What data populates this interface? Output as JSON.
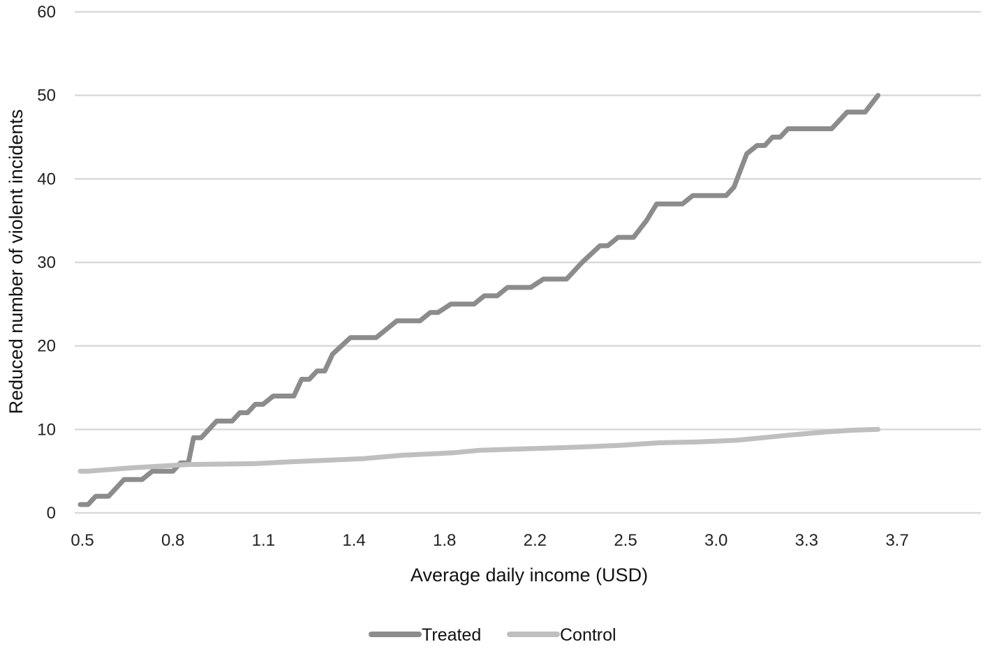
{
  "chart_data": {
    "type": "line",
    "title": "",
    "xlabel": "Average daily income (USD)",
    "ylabel": "Reduced number of violent incidents",
    "ylim": [
      0,
      60
    ],
    "yticks": [
      "0",
      "10",
      "20",
      "30",
      "40",
      "50",
      "60"
    ],
    "xlim": [
      0.5,
      4.0
    ],
    "xticks": [
      "0.5",
      "0.8",
      "1.1",
      "1.4",
      "1.8",
      "2.2",
      "2.5",
      "3.0",
      "3.3",
      "3.7"
    ],
    "grid": true,
    "legend_position": "bottom",
    "series": [
      {
        "name": "Treated",
        "color": "#8c8c8c",
        "points": [
          [
            0.5,
            1
          ],
          [
            0.53,
            1
          ],
          [
            0.56,
            2
          ],
          [
            0.61,
            2
          ],
          [
            0.67,
            4
          ],
          [
            0.74,
            4
          ],
          [
            0.78,
            5
          ],
          [
            0.86,
            5
          ],
          [
            0.89,
            6
          ],
          [
            0.92,
            6
          ],
          [
            0.94,
            9
          ],
          [
            0.97,
            9
          ],
          [
            1.03,
            11
          ],
          [
            1.09,
            11
          ],
          [
            1.12,
            12
          ],
          [
            1.15,
            12
          ],
          [
            1.18,
            13
          ],
          [
            1.21,
            13
          ],
          [
            1.25,
            14
          ],
          [
            1.33,
            14
          ],
          [
            1.36,
            16
          ],
          [
            1.39,
            16
          ],
          [
            1.42,
            17
          ],
          [
            1.45,
            17
          ],
          [
            1.48,
            19
          ],
          [
            1.55,
            21
          ],
          [
            1.65,
            21
          ],
          [
            1.73,
            23
          ],
          [
            1.82,
            23
          ],
          [
            1.86,
            24
          ],
          [
            1.89,
            24
          ],
          [
            1.94,
            25
          ],
          [
            2.03,
            25
          ],
          [
            2.07,
            26
          ],
          [
            2.12,
            26
          ],
          [
            2.16,
            27
          ],
          [
            2.25,
            27
          ],
          [
            2.3,
            28
          ],
          [
            2.39,
            28
          ],
          [
            2.45,
            30
          ],
          [
            2.52,
            32
          ],
          [
            2.55,
            32
          ],
          [
            2.59,
            33
          ],
          [
            2.65,
            33
          ],
          [
            2.7,
            35
          ],
          [
            2.74,
            37
          ],
          [
            2.84,
            37
          ],
          [
            2.88,
            38
          ],
          [
            3.01,
            38
          ],
          [
            3.04,
            39
          ],
          [
            3.09,
            43
          ],
          [
            3.13,
            44
          ],
          [
            3.16,
            44
          ],
          [
            3.19,
            45
          ],
          [
            3.22,
            45
          ],
          [
            3.25,
            46
          ],
          [
            3.42,
            46
          ],
          [
            3.48,
            48
          ],
          [
            3.55,
            48
          ],
          [
            3.6,
            50
          ]
        ]
      },
      {
        "name": "Control",
        "color": "#bfbfbf",
        "points": [
          [
            0.5,
            5
          ],
          [
            0.53,
            5
          ],
          [
            0.7,
            5.4
          ],
          [
            0.92,
            5.8
          ],
          [
            1.18,
            5.9
          ],
          [
            1.3,
            6.1
          ],
          [
            1.45,
            6.3
          ],
          [
            1.6,
            6.5
          ],
          [
            1.75,
            6.9
          ],
          [
            1.95,
            7.2
          ],
          [
            2.05,
            7.5
          ],
          [
            2.25,
            7.7
          ],
          [
            2.45,
            7.9
          ],
          [
            2.6,
            8.1
          ],
          [
            2.75,
            8.4
          ],
          [
            2.9,
            8.5
          ],
          [
            3.05,
            8.7
          ],
          [
            3.15,
            9.0
          ],
          [
            3.25,
            9.3
          ],
          [
            3.4,
            9.7
          ],
          [
            3.5,
            9.9
          ],
          [
            3.6,
            10
          ]
        ]
      }
    ]
  }
}
